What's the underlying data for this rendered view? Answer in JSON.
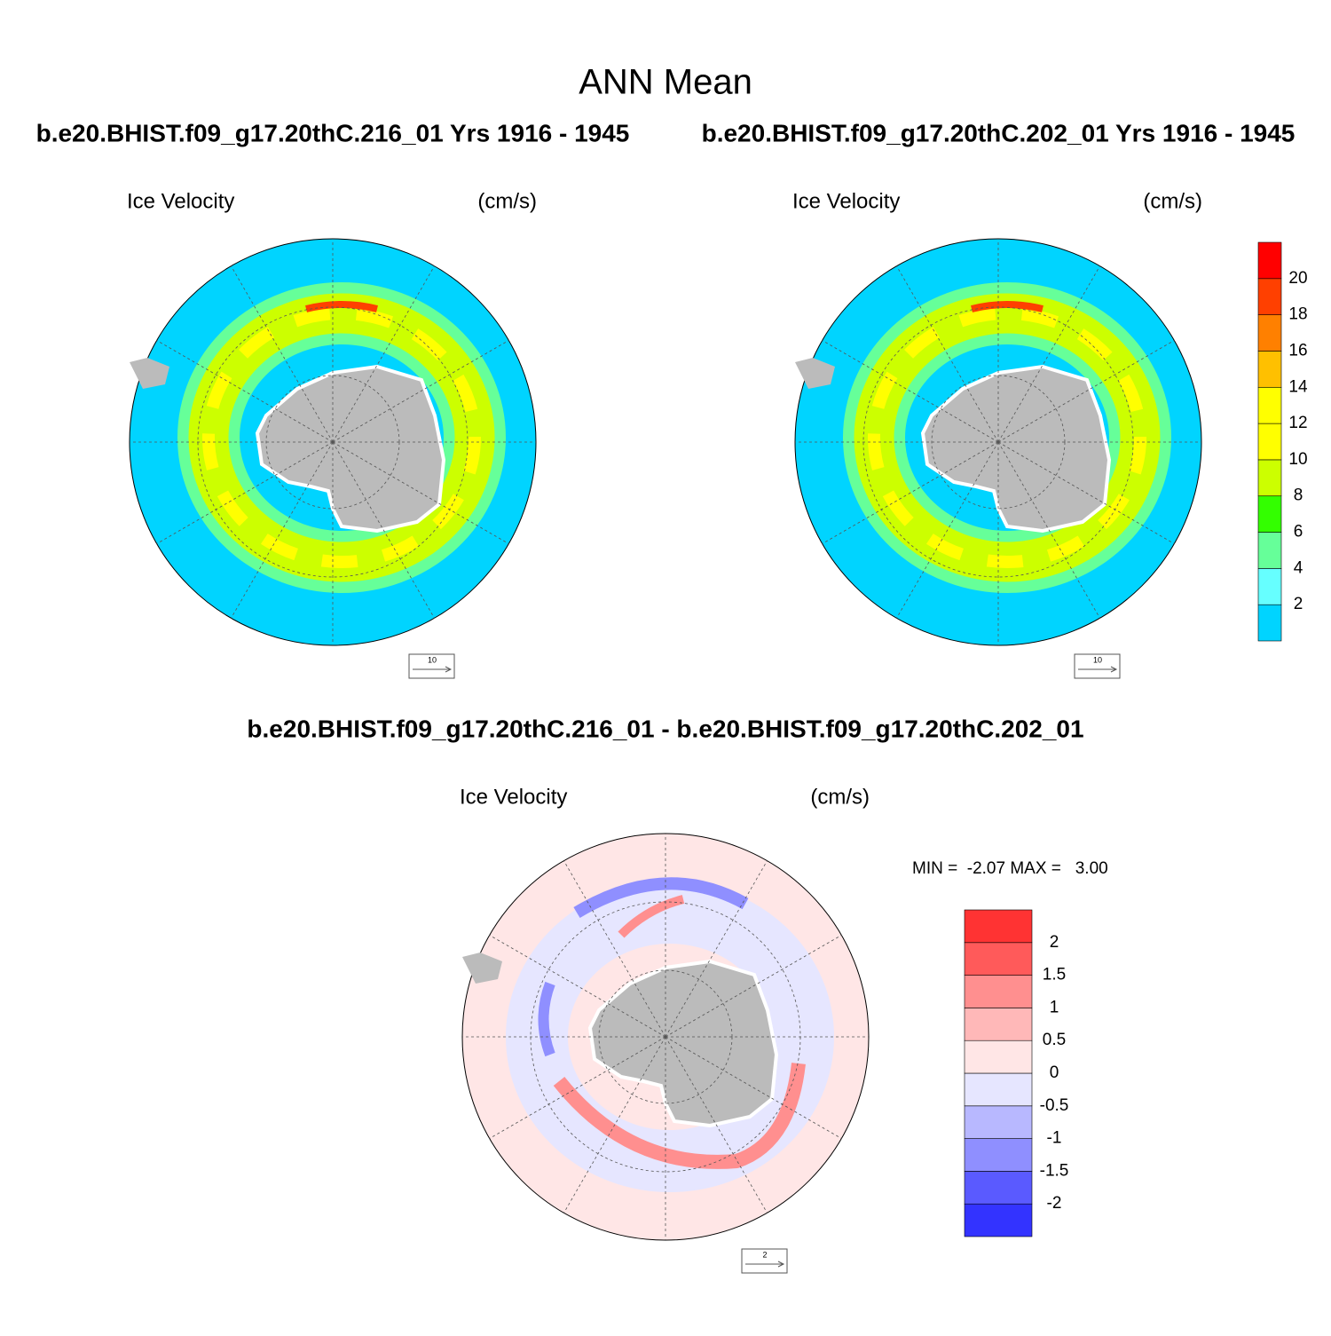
{
  "title": "ANN Mean",
  "panels": [
    {
      "header": "b.e20.BHIST.f09_g17.20thC.216_01  Yrs 1916 - 1945",
      "left_label": "Ice Velocity",
      "right_label": "(cm/s)",
      "ref_vector": 10
    },
    {
      "header": "b.e20.BHIST.f09_g17.20thC.202_01  Yrs 1916 - 1945",
      "left_label": "Ice Velocity",
      "right_label": "(cm/s)",
      "ref_vector": 10
    }
  ],
  "colorbar": {
    "labels": [
      2,
      4,
      6,
      8,
      10,
      12,
      14,
      16,
      18,
      20
    ],
    "colors": [
      "#00d4ff",
      "#66ffff",
      "#66ff99",
      "#33ff00",
      "#ccff00",
      "#ffff00",
      "#ffff00",
      "#ffc000",
      "#ff8000",
      "#ff4000",
      "#ff0000"
    ]
  },
  "difference": {
    "header": "b.e20.BHIST.f09_g17.20thC.216_01 - b.e20.BHIST.f09_g17.20thC.202_01",
    "left_label": "Ice Velocity",
    "right_label": "(cm/s)",
    "stats": "MIN =  -2.07 MAX =   3.00",
    "ref_vector": 2,
    "colorbar": {
      "labels": [
        -2,
        -1.5,
        -1,
        -0.5,
        0,
        0.5,
        1,
        1.5,
        2
      ],
      "colors": [
        "#3333ff",
        "#5a5aff",
        "#8f8fff",
        "#b8b8ff",
        "#e6e6ff",
        "#ffe6e6",
        "#ffb8b8",
        "#ff8f8f",
        "#ff5a5a",
        "#ff3333"
      ]
    }
  }
}
